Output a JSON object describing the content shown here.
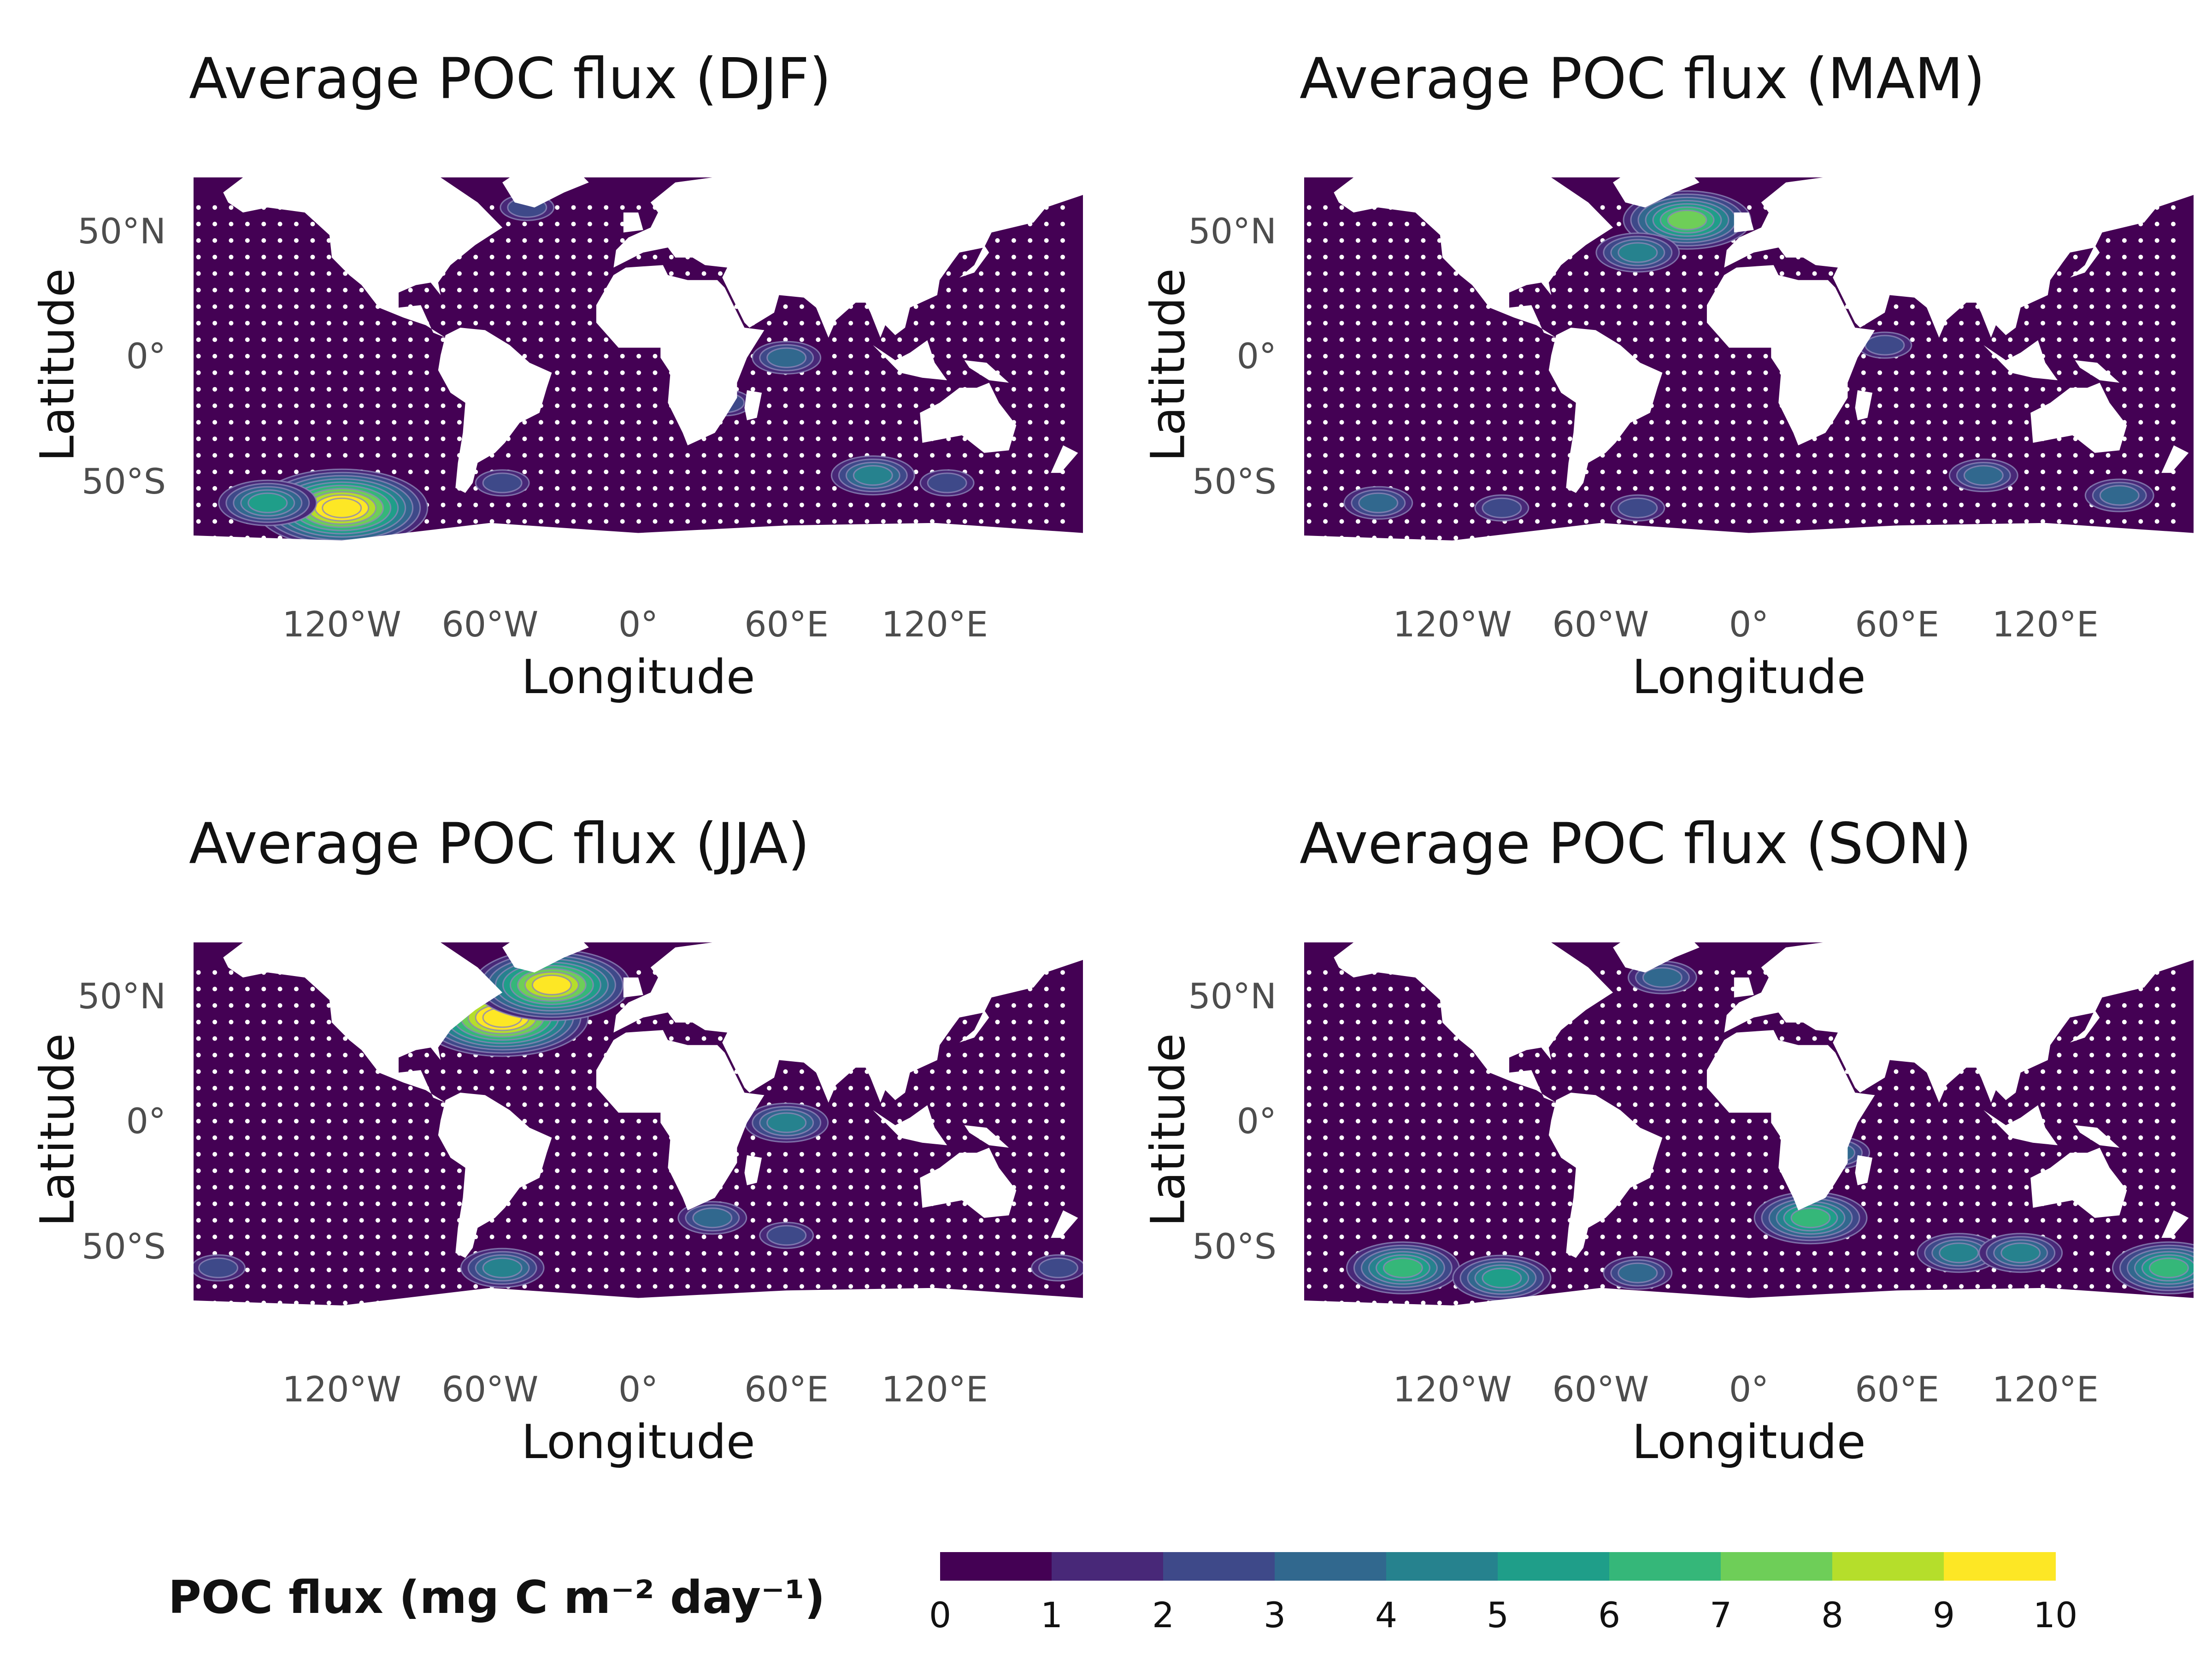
{
  "panels": [
    {
      "title": "Average POC flux (DJF)"
    },
    {
      "title": "Average POC flux (MAM)"
    },
    {
      "title": "Average POC flux (JJA)"
    },
    {
      "title": "Average POC flux (SON)"
    }
  ],
  "axes": {
    "x_title": "Longitude",
    "y_title": "Latitude",
    "x_ticks": [
      "120°W",
      "60°W",
      "0°",
      "60°E",
      "120°E"
    ],
    "y_ticks": [
      "50°N",
      "0°",
      "50°S"
    ]
  },
  "legend": {
    "title": "POC flux (mg C m⁻² day⁻¹)",
    "ticks": [
      "0",
      "1",
      "2",
      "3",
      "4",
      "5",
      "6",
      "7",
      "8",
      "9",
      "10"
    ],
    "colors": [
      "#440154",
      "#482878",
      "#3e4989",
      "#31688e",
      "#26828e",
      "#1f9e89",
      "#35b779",
      "#6ece58",
      "#b5de2b",
      "#fde725"
    ]
  },
  "colors": {
    "ocean": "#440154",
    "land": "#ffffff",
    "contour_line": "#8c86b8"
  },
  "chart_data": [
    {
      "type": "heatmap",
      "season": "DJF",
      "title": "Average POC flux (DJF)",
      "xlabel": "Longitude",
      "ylabel": "Latitude",
      "hotspots": [
        {
          "lon": -120,
          "lat": -60,
          "value": 10
        },
        {
          "lon": -150,
          "lat": -58,
          "value": 5
        },
        {
          "lon": -55,
          "lat": -50,
          "value": 2
        },
        {
          "lon": 60,
          "lat": 0,
          "value": 3
        },
        {
          "lon": 95,
          "lat": -47,
          "value": 4
        },
        {
          "lon": -45,
          "lat": 60,
          "value": 2
        },
        {
          "lon": 125,
          "lat": -50,
          "value": 2
        },
        {
          "lon": 35,
          "lat": -18,
          "value": 2
        }
      ]
    },
    {
      "type": "heatmap",
      "season": "MAM",
      "title": "Average POC flux (MAM)",
      "xlabel": "Longitude",
      "ylabel": "Latitude",
      "hotspots": [
        {
          "lon": -25,
          "lat": 55,
          "value": 7
        },
        {
          "lon": -45,
          "lat": 42,
          "value": 4
        },
        {
          "lon": -150,
          "lat": -58,
          "value": 3
        },
        {
          "lon": -100,
          "lat": -60,
          "value": 2
        },
        {
          "lon": -45,
          "lat": -60,
          "value": 2
        },
        {
          "lon": 95,
          "lat": -47,
          "value": 3
        },
        {
          "lon": 150,
          "lat": -55,
          "value": 3
        },
        {
          "lon": 55,
          "lat": 5,
          "value": 2
        }
      ]
    },
    {
      "type": "heatmap",
      "season": "JJA",
      "title": "Average POC flux (JJA)",
      "xlabel": "Longitude",
      "ylabel": "Latitude",
      "hotspots": [
        {
          "lon": -55,
          "lat": 42,
          "value": 10
        },
        {
          "lon": -35,
          "lat": 55,
          "value": 9
        },
        {
          "lon": -55,
          "lat": -58,
          "value": 4
        },
        {
          "lon": 60,
          "lat": 0,
          "value": 4
        },
        {
          "lon": 30,
          "lat": -38,
          "value": 3
        },
        {
          "lon": 60,
          "lat": -45,
          "value": 2
        },
        {
          "lon": -170,
          "lat": -58,
          "value": 2
        },
        {
          "lon": 170,
          "lat": -58,
          "value": 2
        }
      ]
    },
    {
      "type": "heatmap",
      "season": "SON",
      "title": "Average POC flux (SON)",
      "xlabel": "Longitude",
      "ylabel": "Latitude",
      "hotspots": [
        {
          "lon": -140,
          "lat": -58,
          "value": 6
        },
        {
          "lon": -100,
          "lat": -62,
          "value": 5
        },
        {
          "lon": 25,
          "lat": -38,
          "value": 6
        },
        {
          "lon": 35,
          "lat": -12,
          "value": 3
        },
        {
          "lon": 85,
          "lat": -52,
          "value": 4
        },
        {
          "lon": 110,
          "lat": -52,
          "value": 4
        },
        {
          "lon": 170,
          "lat": -58,
          "value": 6
        },
        {
          "lon": -35,
          "lat": 58,
          "value": 3
        },
        {
          "lon": -45,
          "lat": -60,
          "value": 3
        }
      ]
    }
  ]
}
